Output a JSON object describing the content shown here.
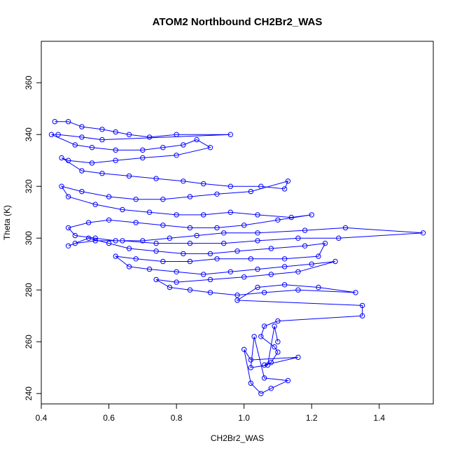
{
  "chart_data": {
    "type": "line",
    "title": "ATOM2 Northbound CH2Br2_WAS",
    "xlabel": "CH2Br2_WAS",
    "ylabel": "Theta (K)",
    "xlim": [
      0.4,
      1.56
    ],
    "ylim": [
      236,
      376
    ],
    "xticks": [
      "0.4",
      "0.6",
      "0.8",
      "1.0",
      "1.2",
      "1.4"
    ],
    "yticks": [
      "240",
      "260",
      "280",
      "300",
      "320",
      "340",
      "360"
    ],
    "series": [
      {
        "color": "#0000ff",
        "marker": "open-circle",
        "points": [
          [
            0.44,
            345
          ],
          [
            0.48,
            345
          ],
          [
            0.52,
            343
          ],
          [
            0.58,
            342
          ],
          [
            0.62,
            341
          ],
          [
            0.66,
            340
          ],
          [
            0.72,
            339
          ],
          [
            0.8,
            340
          ],
          [
            0.96,
            340
          ],
          [
            0.58,
            338
          ],
          [
            0.52,
            339
          ],
          [
            0.45,
            340
          ],
          [
            0.43,
            340
          ],
          [
            0.5,
            336
          ],
          [
            0.55,
            335
          ],
          [
            0.62,
            334
          ],
          [
            0.7,
            334
          ],
          [
            0.76,
            335
          ],
          [
            0.82,
            336
          ],
          [
            0.86,
            338
          ],
          [
            0.9,
            335
          ],
          [
            0.8,
            332
          ],
          [
            0.7,
            331
          ],
          [
            0.62,
            330
          ],
          [
            0.55,
            329
          ],
          [
            0.48,
            330
          ],
          [
            0.46,
            331
          ],
          [
            0.52,
            326
          ],
          [
            0.58,
            325
          ],
          [
            0.66,
            324
          ],
          [
            0.74,
            323
          ],
          [
            0.82,
            322
          ],
          [
            0.88,
            321
          ],
          [
            0.96,
            320
          ],
          [
            1.05,
            320
          ],
          [
            1.12,
            319
          ],
          [
            1.13,
            322
          ],
          [
            1.02,
            318
          ],
          [
            0.92,
            317
          ],
          [
            0.84,
            316
          ],
          [
            0.76,
            315
          ],
          [
            0.68,
            315
          ],
          [
            0.6,
            316
          ],
          [
            0.52,
            318
          ],
          [
            0.46,
            320
          ],
          [
            0.48,
            316
          ],
          [
            0.56,
            313
          ],
          [
            0.64,
            311
          ],
          [
            0.72,
            310
          ],
          [
            0.8,
            309
          ],
          [
            0.88,
            309
          ],
          [
            0.96,
            310
          ],
          [
            1.04,
            309
          ],
          [
            1.14,
            308
          ],
          [
            1.2,
            309
          ],
          [
            1.1,
            307
          ],
          [
            1.0,
            305
          ],
          [
            0.92,
            304
          ],
          [
            0.84,
            304
          ],
          [
            0.76,
            305
          ],
          [
            0.68,
            306
          ],
          [
            0.6,
            307
          ],
          [
            0.54,
            306
          ],
          [
            0.48,
            304
          ],
          [
            0.5,
            301
          ],
          [
            0.56,
            300
          ],
          [
            0.62,
            299
          ],
          [
            0.7,
            299
          ],
          [
            0.78,
            300
          ],
          [
            0.86,
            301
          ],
          [
            0.94,
            302
          ],
          [
            1.04,
            302
          ],
          [
            1.18,
            303
          ],
          [
            1.3,
            304
          ],
          [
            1.53,
            302
          ],
          [
            1.28,
            300
          ],
          [
            1.16,
            300
          ],
          [
            1.04,
            299
          ],
          [
            0.94,
            298
          ],
          [
            0.84,
            298
          ],
          [
            0.74,
            298
          ],
          [
            0.64,
            299
          ],
          [
            0.56,
            299
          ],
          [
            0.5,
            298
          ],
          [
            0.48,
            297
          ],
          [
            0.54,
            300
          ],
          [
            0.6,
            298
          ],
          [
            0.66,
            296
          ],
          [
            0.74,
            295
          ],
          [
            0.82,
            294
          ],
          [
            0.9,
            294
          ],
          [
            0.98,
            295
          ],
          [
            1.08,
            296
          ],
          [
            1.18,
            297
          ],
          [
            1.24,
            298
          ],
          [
            1.22,
            293
          ],
          [
            1.12,
            292
          ],
          [
            1.02,
            292
          ],
          [
            0.92,
            292
          ],
          [
            0.84,
            291
          ],
          [
            0.76,
            291
          ],
          [
            0.68,
            292
          ],
          [
            0.62,
            293
          ],
          [
            0.66,
            289
          ],
          [
            0.72,
            288
          ],
          [
            0.8,
            287
          ],
          [
            0.88,
            286
          ],
          [
            0.96,
            287
          ],
          [
            1.04,
            288
          ],
          [
            1.12,
            289
          ],
          [
            1.2,
            290
          ],
          [
            1.27,
            291
          ],
          [
            1.16,
            287
          ],
          [
            1.08,
            286
          ],
          [
            1.0,
            285
          ],
          [
            0.9,
            284
          ],
          [
            0.8,
            283
          ],
          [
            0.74,
            284
          ],
          [
            0.78,
            281
          ],
          [
            0.84,
            280
          ],
          [
            0.9,
            279
          ],
          [
            0.98,
            278
          ],
          [
            1.06,
            279
          ],
          [
            1.16,
            280
          ],
          [
            1.33,
            279
          ],
          [
            1.22,
            281
          ],
          [
            1.12,
            282
          ],
          [
            1.04,
            281
          ],
          [
            0.98,
            276
          ],
          [
            1.35,
            274
          ],
          [
            1.35,
            270
          ],
          [
            1.1,
            268
          ],
          [
            1.06,
            266
          ],
          [
            1.05,
            262
          ],
          [
            1.09,
            258
          ],
          [
            1.1,
            256
          ],
          [
            1.08,
            252
          ],
          [
            1.06,
            251
          ],
          [
            1.16,
            254
          ],
          [
            1.02,
            253
          ],
          [
            1.0,
            257
          ],
          [
            1.02,
            244
          ],
          [
            1.05,
            240
          ],
          [
            1.08,
            242
          ],
          [
            1.13,
            245
          ],
          [
            1.06,
            246
          ],
          [
            1.03,
            262
          ],
          [
            1.02,
            250
          ],
          [
            1.07,
            251
          ],
          [
            1.09,
            266
          ],
          [
            1.1,
            260
          ]
        ]
      }
    ],
    "grid": false,
    "legend": "none"
  }
}
